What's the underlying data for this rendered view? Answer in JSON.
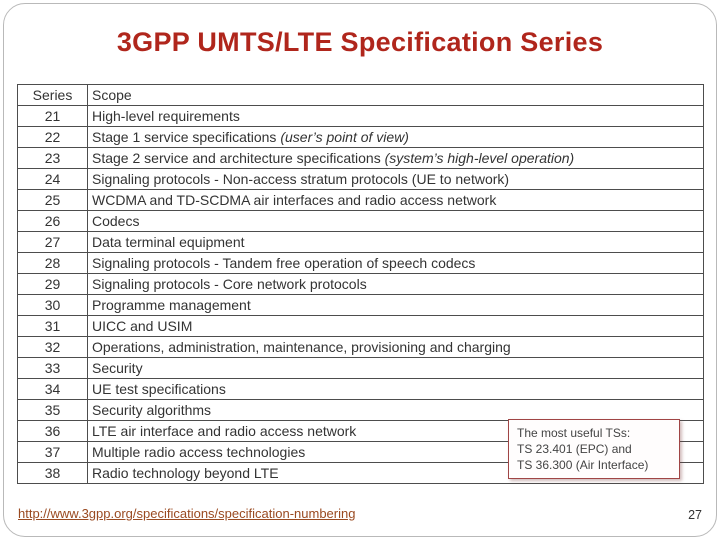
{
  "slide": {
    "title": "3GPP UMTS/LTE Specification Series",
    "footer_link": "http://www.3gpp.org/specifications/specification-numbering",
    "page_number": "27",
    "title_color": "#b0261c",
    "link_color": "#9a4a21"
  },
  "table": {
    "headers": {
      "series": "Series",
      "scope": "Scope"
    },
    "rows": [
      {
        "series": "21",
        "scope": "High-level requirements"
      },
      {
        "series": "22",
        "scope": "Stage 1 service specifications  ",
        "scope_italic": "(user’s point of view)"
      },
      {
        "series": "23",
        "scope": "Stage 2 service and architecture specifications ",
        "scope_italic": "(system’s high-level operation)"
      },
      {
        "series": "24",
        "scope": "Signaling protocols - Non-access stratum protocols (UE to network)"
      },
      {
        "series": "25",
        "scope": "WCDMA and TD-SCDMA air interfaces and radio access network"
      },
      {
        "series": "26",
        "scope": "Codecs"
      },
      {
        "series": "27",
        "scope": "Data terminal equipment"
      },
      {
        "series": "28",
        "scope": "Signaling protocols - Tandem free operation of speech codecs"
      },
      {
        "series": "29",
        "scope": "Signaling protocols - Core network protocols"
      },
      {
        "series": "30",
        "scope": "Programme management"
      },
      {
        "series": "31",
        "scope": "UICC and USIM"
      },
      {
        "series": "32",
        "scope": "Operations, administration, maintenance, provisioning and charging"
      },
      {
        "series": "33",
        "scope": "Security"
      },
      {
        "series": "34",
        "scope": "UE test specifications"
      },
      {
        "series": "35",
        "scope": "Security algorithms"
      },
      {
        "series": "36",
        "scope": "LTE air interface and radio access network"
      },
      {
        "series": "37",
        "scope": "Multiple radio access technologies"
      },
      {
        "series": "38",
        "scope": "Radio technology beyond LTE"
      }
    ]
  },
  "callout": {
    "lines": [
      "The most useful TSs:",
      "TS 23.401 (EPC) and",
      "TS 36.300 (Air Interface)"
    ]
  }
}
